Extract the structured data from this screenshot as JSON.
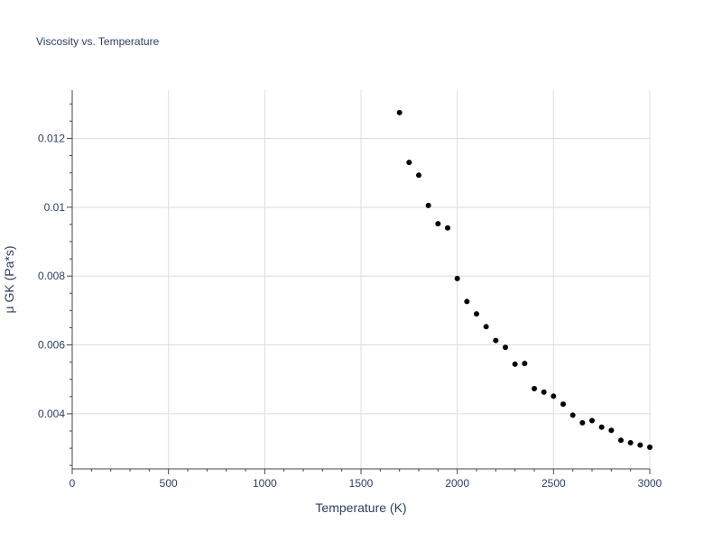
{
  "chart_data": {
    "type": "scatter",
    "title": "Viscosity vs. Temperature",
    "xlabel": "Temperature (K)",
    "ylabel": "μ GK (Pa*s)",
    "xlim": [
      0,
      3000
    ],
    "ylim": [
      0.0024,
      0.0134
    ],
    "x_ticks": [
      0,
      500,
      1000,
      1500,
      2000,
      2500,
      3000
    ],
    "x_tick_labels": [
      "0",
      "500",
      "1000",
      "1500",
      "2000",
      "2500",
      "3000"
    ],
    "y_ticks": [
      0.004,
      0.006,
      0.008,
      0.01,
      0.012
    ],
    "y_tick_labels": [
      "0.004",
      "0.006",
      "0.008",
      "0.01",
      "0.012"
    ],
    "grid": true,
    "marker_color": "#000000",
    "x": [
      1700,
      1750,
      1800,
      1850,
      1900,
      1950,
      2000,
      2050,
      2100,
      2150,
      2200,
      2250,
      2300,
      2350,
      2400,
      2450,
      2500,
      2550,
      2600,
      2650,
      2700,
      2750,
      2800,
      2850,
      2900,
      2950,
      3000
    ],
    "y": [
      0.01275,
      0.0113,
      0.01093,
      0.01005,
      0.00952,
      0.0094,
      0.00793,
      0.00726,
      0.0069,
      0.00653,
      0.00613,
      0.00593,
      0.00544,
      0.00546,
      0.00473,
      0.00463,
      0.00451,
      0.00428,
      0.00396,
      0.00374,
      0.0038,
      0.00361,
      0.00352,
      0.00323,
      0.00316,
      0.00309,
      0.00303
    ]
  }
}
